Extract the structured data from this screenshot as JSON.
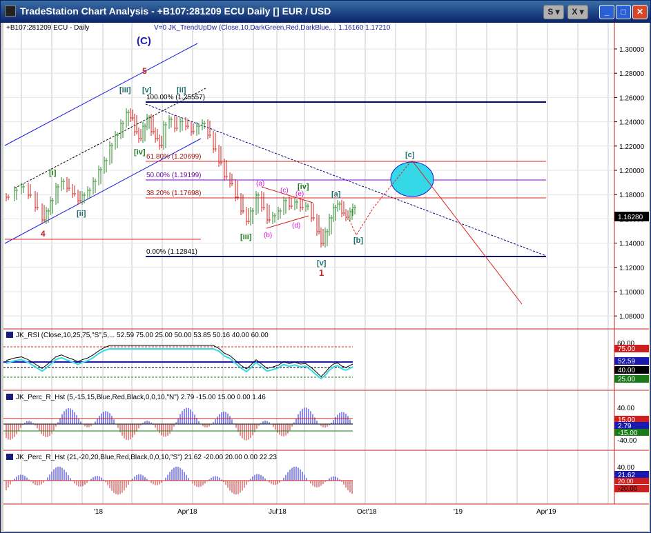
{
  "window": {
    "title": "TradeStation Chart Analysis  - +B107:281209 ECU Daily [] EUR / USD",
    "btn_s": "S",
    "btn_x": "X"
  },
  "price_pane": {
    "symbol": "+B107:281209 ECU - Daily",
    "indicator": "V=0  JK_TrendUpDw (Close,10,DarkGreen,Red,DarkBlue,...  1.16160  1.17210",
    "y_ticks": [
      "1.30000",
      "1.28000",
      "1.26000",
      "1.24000",
      "1.22000",
      "1.20000",
      "1.18000",
      "1.16000",
      "1.14000",
      "1.12000",
      "1.10000",
      "1.08000"
    ],
    "last_price": "1.16280",
    "fib_labels": [
      "100.00% (1.25557)",
      "61.80% (1.20699)",
      "50.00% (1.19199)",
      "38.20% (1.17698)",
      "0.00% (1.12841)"
    ],
    "wave_labels": {
      "C": "(C)",
      "five_red": "5",
      "iii_top": "[iii]",
      "v_top": "[v]",
      "ii_top": "[ii]",
      "iv_left": "[iv]",
      "ii_left": "[ii]",
      "i_left": "[i]",
      "four": "4",
      "iii_mid": "[iii]",
      "a_mag": "(a)",
      "b_mag": "(b)",
      "c_mag": "(c)",
      "d_mag": "(d)",
      "e_mag": "(e)",
      "iv_mid": "[iv]",
      "v_bot": "[v]",
      "one_red": "1",
      "a_sq": "[a]",
      "b_sq": "[b]",
      "c_sq": "[c]"
    }
  },
  "x_axis": [
    "'18",
    "Apr'18",
    "Jul'18",
    "Oct'18",
    "'19",
    "Apr'19"
  ],
  "rsi_pane": {
    "header": "JK_RSI (Close,10,25,75,\"S\",5,...  52.59  75.00  25.00  50.00  53.85  50.16  40.00  60.00",
    "labels": [
      "75.00",
      "52.59",
      "40.00",
      "25.00"
    ],
    "tick_top": "60.00"
  },
  "perc1_pane": {
    "header": "JK_Perc_R_Hst (5,-15,15,Blue,Red,Black,0,0,10,\"N\")  2.79  -15.00  15.00  0.00  1.46",
    "labels": [
      "40.00",
      "15.00",
      "2.79",
      "-15.00",
      "-40.00"
    ]
  },
  "perc2_pane": {
    "header": "JK_Perc_R_Hst (21,-20,20,Blue,Red,Black,0,0,10,\"S\")  21.62  -20.00  20.00  0.00  22.23",
    "labels": [
      "40.00",
      "21.62",
      "20.00",
      "-20.00"
    ]
  },
  "colors": {
    "fib_line": "#e02020",
    "navy": "#000080",
    "green": "#1a7a1a",
    "teal": "#1a6e6e",
    "magenta": "#e010e0",
    "ellipse": "#34d8e6",
    "up_bar": "#2a8a2a",
    "down_bar": "#cc2020"
  }
}
